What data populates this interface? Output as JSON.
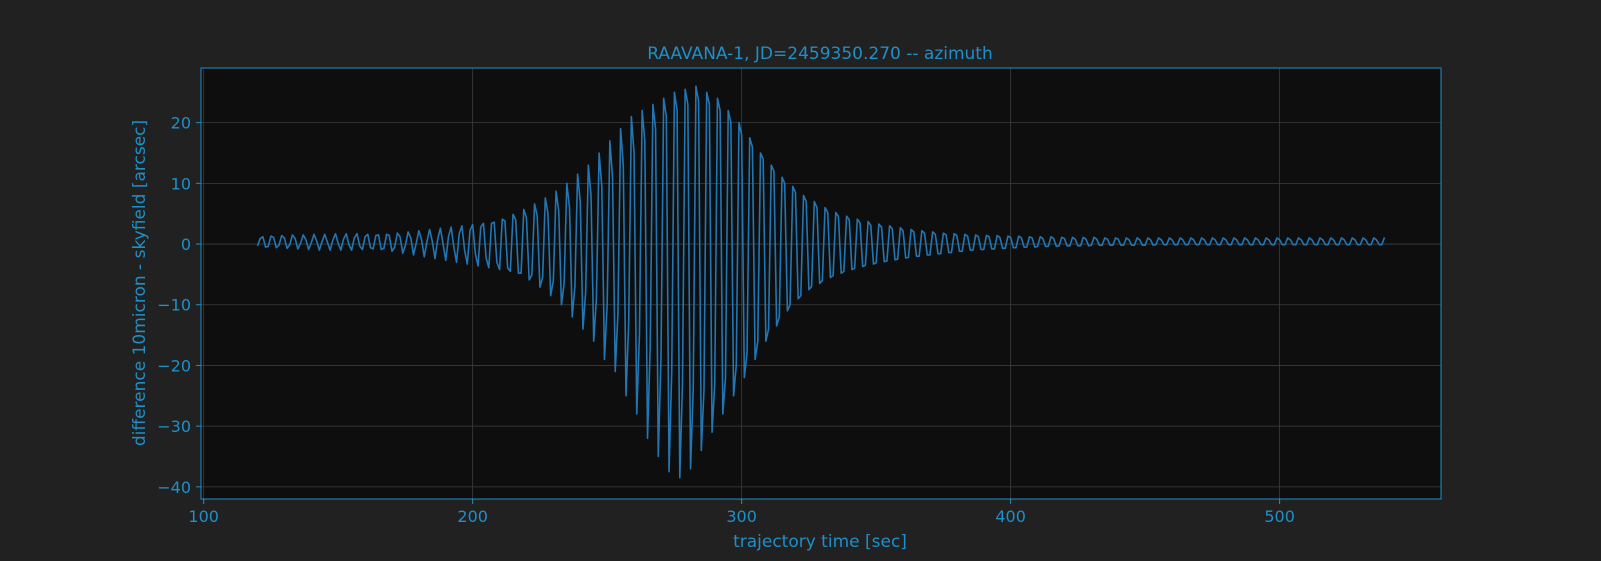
{
  "colors": {
    "figure_bg": "#212121",
    "plot_bg": "#0e0e0e",
    "accent": "#1f8fc8",
    "line": "#2176b3",
    "grid": "#3d3d3d"
  },
  "chart_data": {
    "type": "line",
    "title": "RAAVANA-1, JD=2459350.270 -- azimuth",
    "xlabel": "trajectory time [sec]",
    "ylabel": "difference 10micron - skyfield [arcsec]",
    "xlim": [
      99,
      560
    ],
    "ylim": [
      -42,
      29
    ],
    "xticks": [
      100,
      200,
      300,
      400,
      500
    ],
    "xtick_labels": [
      "100",
      "200",
      "300",
      "400",
      "500"
    ],
    "yticks": [
      20,
      10,
      0,
      -10,
      -20,
      -30,
      -40
    ],
    "ytick_labels": [
      "20",
      "10",
      "0",
      "−10",
      "−20",
      "−30",
      "−40"
    ],
    "grid": true,
    "legend": "none",
    "series": [
      {
        "x_start": 120,
        "x_end": 540,
        "x_step": 1,
        "y": [
          -0.3,
          0.9,
          1.2,
          -0.5,
          -0.4,
          1.3,
          1.1,
          -0.6,
          -0.2,
          1.4,
          1.0,
          -0.7,
          -0.1,
          1.5,
          0.9,
          -0.8,
          0.1,
          1.5,
          0.7,
          -0.9,
          0.2,
          1.6,
          0.5,
          -1.0,
          0.4,
          1.6,
          0.3,
          -1.0,
          0.6,
          1.7,
          0.1,
          -1.0,
          0.8,
          1.7,
          -0.1,
          -1.0,
          1.0,
          1.7,
          -0.3,
          -0.9,
          1.2,
          1.6,
          -0.6,
          -0.8,
          1.4,
          1.5,
          -0.9,
          -0.7,
          1.6,
          1.4,
          -1.2,
          -0.5,
          1.8,
          1.2,
          -1.5,
          -0.2,
          2.0,
          1.0,
          -1.8,
          0.1,
          2.2,
          0.7,
          -2.1,
          0.4,
          2.4,
          0.4,
          -2.4,
          0.8,
          2.6,
          0.0,
          -2.7,
          1.2,
          2.8,
          -0.5,
          -3.0,
          1.7,
          3.0,
          -1.0,
          -3.3,
          2.2,
          3.2,
          -1.6,
          -3.6,
          2.8,
          3.4,
          -2.3,
          -3.9,
          3.4,
          3.6,
          -3.0,
          -4.2,
          4.1,
          3.8,
          -3.9,
          -4.5,
          4.9,
          4.0,
          -4.8,
          -4.8,
          5.7,
          4.3,
          -5.9,
          -5.1,
          6.6,
          4.6,
          -7.1,
          -5.5,
          7.6,
          5.0,
          -8.5,
          -6.0,
          8.7,
          5.5,
          -10.0,
          -6.5,
          10.0,
          6.0,
          -12.0,
          -7.0,
          11.5,
          7.0,
          -14.0,
          -8.0,
          13.0,
          8.0,
          -16.0,
          -9.0,
          15.0,
          9.5,
          -19.0,
          -10.0,
          17.0,
          11.0,
          -21.0,
          -11.5,
          19.0,
          13.0,
          -25.0,
          -13.0,
          21.0,
          15.0,
          -28.0,
          -15.0,
          22.0,
          17.0,
          -32.0,
          -17.0,
          23.0,
          19.0,
          -35.0,
          -19.0,
          24.0,
          21.0,
          -37.5,
          -21.0,
          25.0,
          22.0,
          -38.5,
          -23.0,
          25.5,
          23.0,
          -37.0,
          -24.0,
          26.0,
          23.5,
          -34.0,
          -24.0,
          25.0,
          23.0,
          -31.0,
          -23.0,
          24.0,
          22.0,
          -28.0,
          -22.0,
          22.0,
          20.0,
          -25.0,
          -20.0,
          20.0,
          18.0,
          -22.0,
          -18.0,
          17.5,
          16.0,
          -19.0,
          -16.0,
          15.0,
          14.0,
          -16.0,
          -14.0,
          13.0,
          12.0,
          -13.5,
          -12.0,
          11.0,
          10.0,
          -11.0,
          -10.0,
          9.5,
          8.5,
          -9.0,
          -8.5,
          8.0,
          7.0,
          -7.5,
          -7.0,
          7.0,
          6.0,
          -6.5,
          -6.0,
          6.0,
          5.2,
          -5.5,
          -5.2,
          5.2,
          4.5,
          -4.8,
          -4.5,
          4.6,
          4.0,
          -4.2,
          -4.0,
          4.1,
          3.5,
          -3.7,
          -3.5,
          3.7,
          3.1,
          -3.3,
          -3.1,
          3.3,
          2.8,
          -2.9,
          -2.8,
          3.0,
          2.5,
          -2.6,
          -2.5,
          2.7,
          2.2,
          -2.3,
          -2.2,
          2.4,
          2.0,
          -2.0,
          -2.0,
          2.2,
          1.8,
          -1.8,
          -1.8,
          2.0,
          1.6,
          -1.6,
          -1.6,
          1.8,
          1.5,
          -1.4,
          -1.4,
          1.7,
          1.4,
          -1.2,
          -1.2,
          1.6,
          1.3,
          -1.0,
          -1.0,
          1.5,
          1.2,
          -0.9,
          -0.9,
          1.4,
          1.2,
          -0.8,
          -0.8,
          1.4,
          1.1,
          -0.7,
          -0.7,
          1.3,
          1.1,
          -0.6,
          -0.6,
          1.3,
          1.0,
          -0.5,
          -0.5,
          1.2,
          1.0,
          -0.5,
          -0.4,
          1.2,
          0.9,
          -0.4,
          -0.4,
          1.2,
          0.9,
          -0.4,
          -0.3,
          1.1,
          0.9,
          -0.3,
          -0.3,
          1.1,
          0.8,
          -0.3,
          -0.3,
          1.1,
          0.8,
          -0.3,
          -0.2,
          1.1,
          0.8,
          -0.2,
          -0.2,
          1.0,
          0.8,
          -0.2,
          -0.2,
          1.0,
          0.8,
          -0.2,
          -0.2,
          1.0,
          0.7,
          -0.2,
          -0.2,
          1.0,
          0.7,
          -0.2,
          -0.2,
          1.0,
          0.7,
          -0.2,
          -0.1,
          1.0,
          0.7,
          -0.1,
          -0.1,
          1.0,
          0.7,
          -0.1,
          -0.1,
          1.0,
          0.7,
          -0.1,
          -0.1,
          1.0,
          0.7,
          -0.1,
          -0.1,
          1.0,
          0.7,
          -0.1,
          -0.1,
          1.0,
          0.7,
          -0.1,
          -0.1,
          1.0,
          0.7,
          -0.1,
          -0.1,
          1.0,
          0.7,
          -0.1,
          -0.1,
          1.0,
          0.7,
          -0.1,
          -0.1,
          1.0,
          0.7,
          -0.1,
          -0.1,
          1.0,
          0.7,
          -0.1,
          -0.1,
          1.0,
          0.7,
          -0.1,
          -0.1,
          1.0,
          0.7,
          -0.1,
          -0.1,
          1.0,
          0.7,
          -0.1,
          -0.1,
          1.0,
          0.7,
          -0.1,
          -0.1,
          1.0,
          0.7,
          -0.1,
          -0.1,
          1.0,
          0.7,
          -0.1,
          -0.1,
          1.0,
          0.7,
          -0.1,
          -0.1,
          1.0,
          0.7,
          -0.1,
          -0.1,
          1.0,
          0.7,
          -0.1,
          -0.1,
          1.0,
          0.7,
          -0.1,
          -0.1,
          1.1
        ]
      }
    ]
  }
}
